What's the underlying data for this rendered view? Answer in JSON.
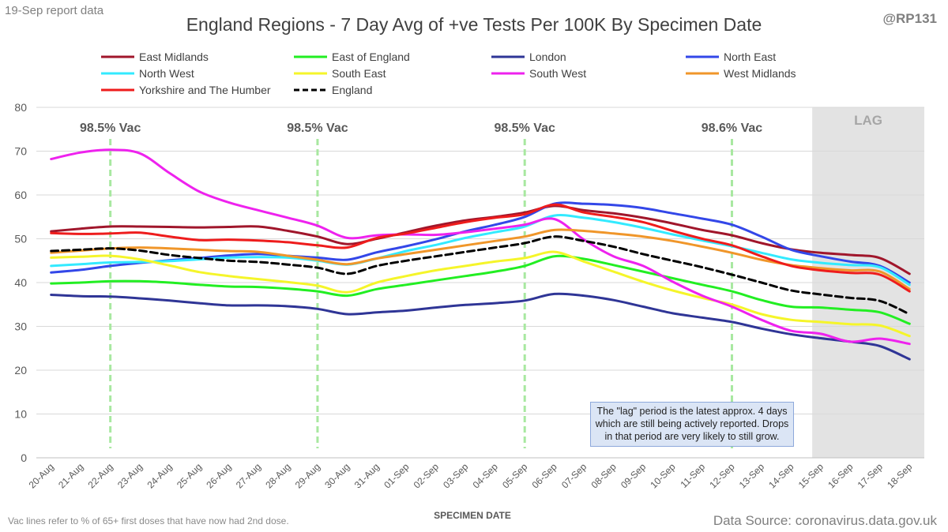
{
  "header": {
    "report_date": "19-Sep report data",
    "handle": "@RP131",
    "title": "England Regions - 7 Day Avg of +ve Tests Per 100K By Specimen Date"
  },
  "footer": {
    "footnote": "Vac lines refer to % of 65+ first doses that have now had 2nd dose.",
    "source": "Data Source: coronavirus.data.gov.uk"
  },
  "note": "The \"lag\" period is the latest approx. 4 days which are still being actively reported. Drops in that period are very likely to still grow.",
  "chart_data": {
    "type": "line",
    "title": "England Regions - 7 Day Avg of +ve Tests Per 100K By Specimen Date",
    "xlabel": "SPECIMEN DATE",
    "ylabel": "",
    "ylim": [
      0,
      80
    ],
    "yticks": [
      0,
      10,
      20,
      30,
      40,
      50,
      60,
      70,
      80
    ],
    "grid": true,
    "legend_position": "top",
    "categories": [
      "20-Aug",
      "21-Aug",
      "22-Aug",
      "23-Aug",
      "24-Aug",
      "25-Aug",
      "26-Aug",
      "27-Aug",
      "28-Aug",
      "29-Aug",
      "30-Aug",
      "31-Aug",
      "01-Sep",
      "02-Sep",
      "03-Sep",
      "04-Sep",
      "05-Sep",
      "06-Sep",
      "07-Sep",
      "08-Sep",
      "09-Sep",
      "10-Sep",
      "11-Sep",
      "12-Sep",
      "13-Sep",
      "14-Sep",
      "15-Sep",
      "16-Sep",
      "17-Sep",
      "18-Sep"
    ],
    "series": [
      {
        "name": "East Midlands",
        "color": "#a0162b",
        "dash": false,
        "values": [
          51.7,
          52.3,
          52.8,
          52.8,
          52.7,
          52.6,
          52.7,
          52.8,
          51.8,
          50.5,
          48.8,
          50.0,
          51.5,
          53.0,
          54.2,
          55.0,
          56.0,
          57.5,
          56.5,
          55.8,
          54.8,
          53.5,
          52.0,
          50.8,
          49.0,
          47.6,
          46.8,
          46.3,
          45.6,
          42.0
        ]
      },
      {
        "name": "East of England",
        "color": "#22ee22",
        "dash": false,
        "values": [
          39.8,
          40.0,
          40.3,
          40.3,
          40.0,
          39.5,
          39.1,
          39.0,
          38.6,
          38.0,
          37.0,
          38.5,
          39.5,
          40.5,
          41.5,
          42.5,
          43.8,
          46.0,
          45.4,
          44.0,
          42.5,
          41.0,
          39.5,
          38.0,
          36.0,
          34.5,
          34.3,
          33.8,
          33.2,
          30.6
        ]
      },
      {
        "name": "London",
        "color": "#2f3596",
        "dash": false,
        "values": [
          37.2,
          36.9,
          36.8,
          36.4,
          35.9,
          35.3,
          34.8,
          34.8,
          34.6,
          34.0,
          32.8,
          33.2,
          33.6,
          34.3,
          34.9,
          35.3,
          35.9,
          37.4,
          37.0,
          36.0,
          34.5,
          33.0,
          32.0,
          31.0,
          29.5,
          28.2,
          27.3,
          26.5,
          25.5,
          22.5
        ]
      },
      {
        "name": "North East",
        "color": "#3347e8",
        "dash": false,
        "values": [
          42.3,
          42.9,
          43.8,
          44.5,
          45.1,
          45.6,
          46.2,
          46.5,
          46.1,
          45.7,
          45.2,
          46.9,
          48.3,
          49.9,
          51.7,
          53.2,
          55.0,
          58.0,
          58.0,
          57.7,
          57.0,
          55.8,
          54.6,
          53.2,
          50.5,
          47.5,
          46.0,
          44.8,
          43.8,
          40.0
        ]
      },
      {
        "name": "North West",
        "color": "#33eaff",
        "dash": false,
        "values": [
          43.8,
          44.2,
          44.6,
          44.7,
          44.9,
          45.3,
          45.7,
          45.8,
          45.7,
          45.0,
          44.1,
          45.5,
          47.2,
          48.6,
          50.2,
          51.5,
          52.8,
          55.3,
          54.8,
          53.8,
          52.5,
          51.0,
          49.6,
          48.3,
          46.8,
          45.3,
          44.5,
          44.0,
          43.5,
          39.5
        ]
      },
      {
        "name": "South East",
        "color": "#f5f52a",
        "dash": false,
        "values": [
          45.7,
          45.9,
          46.1,
          45.3,
          43.9,
          42.4,
          41.5,
          40.8,
          40.1,
          39.3,
          37.8,
          40.0,
          41.5,
          42.8,
          43.8,
          44.8,
          45.6,
          47.0,
          44.8,
          42.5,
          40.2,
          38.2,
          36.5,
          35.0,
          32.8,
          31.5,
          31.0,
          30.5,
          30.2,
          27.8
        ]
      },
      {
        "name": "South West",
        "color": "#ee22ee",
        "dash": false,
        "values": [
          68.2,
          69.7,
          70.3,
          69.5,
          65.0,
          60.8,
          58.3,
          56.5,
          54.8,
          53.0,
          50.2,
          50.8,
          51.0,
          50.9,
          51.5,
          52.3,
          53.2,
          54.5,
          49.8,
          46.0,
          43.8,
          40.2,
          37.0,
          34.5,
          31.5,
          29.0,
          28.3,
          26.5,
          27.2,
          26.0
        ]
      },
      {
        "name": "West Midlands",
        "color": "#f0962a",
        "dash": false,
        "values": [
          46.8,
          47.3,
          47.8,
          48.0,
          47.8,
          47.5,
          47.2,
          47.0,
          46.1,
          45.2,
          44.2,
          45.5,
          46.5,
          47.5,
          48.5,
          49.5,
          50.5,
          52.0,
          51.8,
          51.2,
          50.5,
          49.5,
          48.2,
          46.8,
          45.2,
          44.0,
          43.3,
          42.8,
          42.5,
          38.5
        ]
      },
      {
        "name": "Yorkshire and The Humber",
        "color": "#ee1c1c",
        "dash": false,
        "values": [
          51.3,
          51.1,
          51.2,
          51.4,
          50.5,
          49.7,
          49.8,
          49.6,
          49.2,
          48.5,
          48.0,
          50.2,
          51.2,
          52.5,
          53.8,
          54.8,
          55.6,
          57.8,
          56.0,
          55.0,
          53.8,
          51.8,
          50.0,
          48.5,
          46.0,
          43.8,
          42.8,
          42.2,
          41.8,
          38.0
        ]
      },
      {
        "name": "England",
        "color": "#000000",
        "dash": true,
        "values": [
          47.2,
          47.5,
          47.8,
          47.3,
          46.3,
          45.6,
          45.0,
          44.7,
          44.1,
          43.4,
          42.0,
          43.8,
          45.0,
          46.0,
          47.0,
          48.0,
          49.0,
          50.5,
          49.5,
          48.2,
          46.5,
          45.0,
          43.5,
          41.8,
          40.0,
          38.2,
          37.3,
          36.5,
          35.8,
          32.8
        ]
      }
    ],
    "vaccine_lines": [
      {
        "label": "98.5% Vac",
        "x": "22-Aug"
      },
      {
        "label": "98.5% Vac",
        "x": "29-Aug"
      },
      {
        "label": "98.5% Vac",
        "x": "05-Sep"
      },
      {
        "label": "98.6% Vac",
        "x": "12-Sep"
      }
    ],
    "lag_region": {
      "label": "LAG",
      "from": "15-Sep",
      "to": "18-Sep"
    }
  }
}
